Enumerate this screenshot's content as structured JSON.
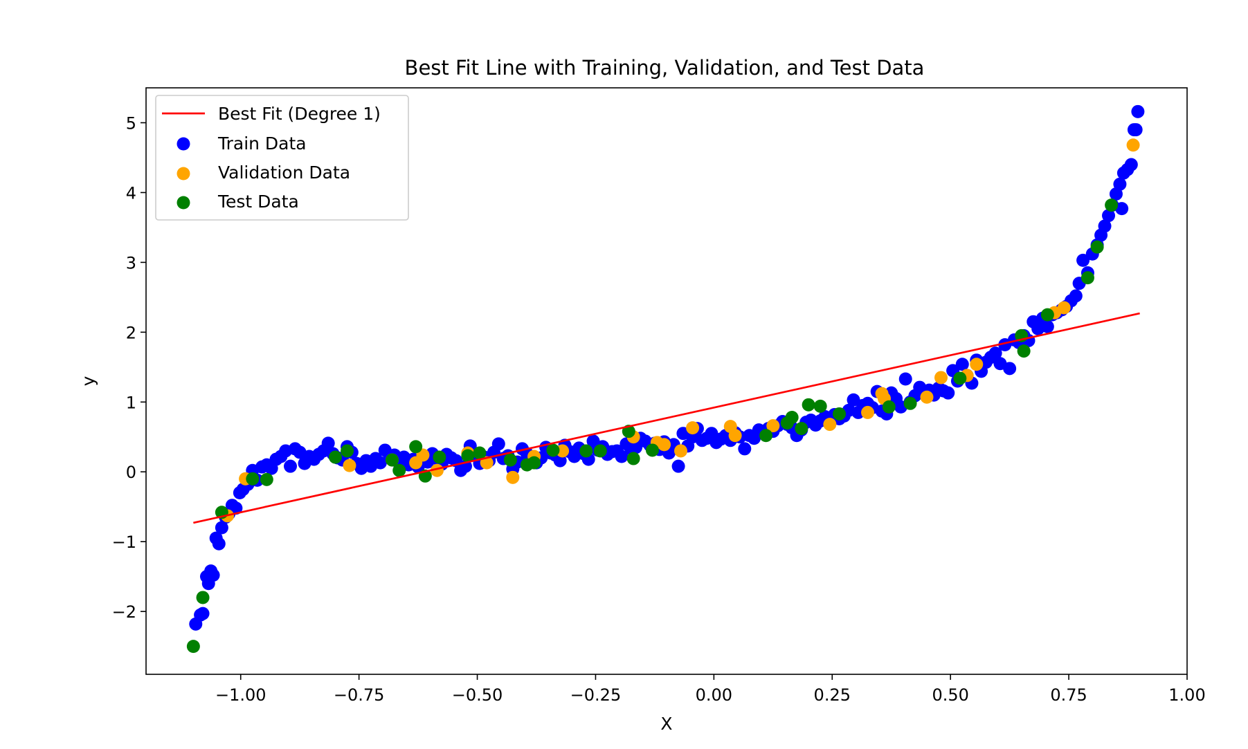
{
  "chart_data": {
    "type": "scatter",
    "title": "Best Fit Line with Training, Validation, and Test Data",
    "xlabel": "X",
    "ylabel": "y",
    "xlim": [
      -1.2,
      1.0
    ],
    "ylim": [
      -2.9,
      5.5
    ],
    "xticks": [
      -1.0,
      -0.75,
      -0.5,
      -0.25,
      0.0,
      0.25,
      0.5,
      0.75,
      1.0
    ],
    "xtick_labels": [
      "−1.00",
      "−0.75",
      "−0.50",
      "−0.25",
      "0.00",
      "0.25",
      "0.50",
      "0.75",
      "1.00"
    ],
    "yticks": [
      -2,
      -1,
      0,
      1,
      2,
      3,
      4,
      5
    ],
    "ytick_labels": [
      "−2",
      "−1",
      "0",
      "1",
      "2",
      "3",
      "4",
      "5"
    ],
    "grid": false,
    "legend_position": "top-left",
    "best_fit": {
      "name": "Best Fit (Degree 1)",
      "color": "#ff0000",
      "x": [
        -1.1,
        0.9
      ],
      "y": [
        -0.73,
        2.27
      ]
    },
    "series": [
      {
        "name": "Train Data",
        "color": "#0000ff",
        "points": [
          [
            -1.095,
            -2.18
          ],
          [
            -1.085,
            -2.05
          ],
          [
            -1.08,
            -2.03
          ],
          [
            -1.072,
            -1.5
          ],
          [
            -1.068,
            -1.6
          ],
          [
            -1.063,
            -1.42
          ],
          [
            -1.058,
            -1.48
          ],
          [
            -1.052,
            -0.95
          ],
          [
            -1.046,
            -1.03
          ],
          [
            -1.04,
            -0.8
          ],
          [
            -1.032,
            -0.65
          ],
          [
            -1.025,
            -0.6
          ],
          [
            -1.018,
            -0.48
          ],
          [
            -1.01,
            -0.52
          ],
          [
            -1.002,
            -0.3
          ],
          [
            -0.995,
            -0.25
          ],
          [
            -0.985,
            -0.18
          ],
          [
            -0.975,
            0.02
          ],
          [
            -0.965,
            -0.12
          ],
          [
            -0.955,
            0.07
          ],
          [
            -0.945,
            0.1
          ],
          [
            -0.935,
            0.05
          ],
          [
            -0.925,
            0.18
          ],
          [
            -0.915,
            0.22
          ],
          [
            -0.905,
            0.3
          ],
          [
            -0.895,
            0.08
          ],
          [
            -0.885,
            0.33
          ],
          [
            -0.875,
            0.28
          ],
          [
            -0.865,
            0.12
          ],
          [
            -0.855,
            0.22
          ],
          [
            -0.845,
            0.18
          ],
          [
            -0.835,
            0.25
          ],
          [
            -0.825,
            0.3
          ],
          [
            -0.815,
            0.41
          ],
          [
            -0.805,
            0.26
          ],
          [
            -0.795,
            0.2
          ],
          [
            -0.785,
            0.17
          ],
          [
            -0.775,
            0.36
          ],
          [
            -0.765,
            0.28
          ],
          [
            -0.755,
            0.12
          ],
          [
            -0.745,
            0.05
          ],
          [
            -0.735,
            0.16
          ],
          [
            -0.725,
            0.08
          ],
          [
            -0.715,
            0.19
          ],
          [
            -0.705,
            0.13
          ],
          [
            -0.695,
            0.31
          ],
          [
            -0.685,
            0.22
          ],
          [
            -0.675,
            0.24
          ],
          [
            -0.665,
            0.12
          ],
          [
            -0.655,
            0.21
          ],
          [
            -0.645,
            0.1
          ],
          [
            -0.635,
            0.18
          ],
          [
            -0.625,
            0.07
          ],
          [
            -0.615,
            0.22
          ],
          [
            -0.605,
            0.14
          ],
          [
            -0.595,
            0.26
          ],
          [
            -0.585,
            0.19
          ],
          [
            -0.575,
            0.11
          ],
          [
            -0.565,
            0.25
          ],
          [
            -0.555,
            0.2
          ],
          [
            -0.545,
            0.16
          ],
          [
            -0.535,
            0.02
          ],
          [
            -0.525,
            0.08
          ],
          [
            -0.515,
            0.37
          ],
          [
            -0.505,
            0.24
          ],
          [
            -0.495,
            0.12
          ],
          [
            -0.485,
            0.21
          ],
          [
            -0.475,
            0.16
          ],
          [
            -0.465,
            0.28
          ],
          [
            -0.455,
            0.4
          ],
          [
            -0.445,
            0.19
          ],
          [
            -0.435,
            0.23
          ],
          [
            -0.425,
            0.04
          ],
          [
            -0.415,
            0.14
          ],
          [
            -0.405,
            0.33
          ],
          [
            -0.395,
            0.26
          ],
          [
            -0.385,
            0.18
          ],
          [
            -0.375,
            0.13
          ],
          [
            -0.365,
            0.2
          ],
          [
            -0.355,
            0.35
          ],
          [
            -0.345,
            0.27
          ],
          [
            -0.335,
            0.24
          ],
          [
            -0.325,
            0.16
          ],
          [
            -0.315,
            0.38
          ],
          [
            -0.305,
            0.29
          ],
          [
            -0.295,
            0.22
          ],
          [
            -0.285,
            0.34
          ],
          [
            -0.275,
            0.26
          ],
          [
            -0.265,
            0.18
          ],
          [
            -0.255,
            0.44
          ],
          [
            -0.245,
            0.31
          ],
          [
            -0.235,
            0.36
          ],
          [
            -0.225,
            0.25
          ],
          [
            -0.215,
            0.29
          ],
          [
            -0.205,
            0.3
          ],
          [
            -0.195,
            0.22
          ],
          [
            -0.185,
            0.4
          ],
          [
            -0.175,
            0.33
          ],
          [
            -0.165,
            0.35
          ],
          [
            -0.155,
            0.48
          ],
          [
            -0.145,
            0.44
          ],
          [
            -0.135,
            0.38
          ],
          [
            -0.125,
            0.41
          ],
          [
            -0.115,
            0.32
          ],
          [
            -0.105,
            0.43
          ],
          [
            -0.095,
            0.27
          ],
          [
            -0.085,
            0.39
          ],
          [
            -0.075,
            0.08
          ],
          [
            -0.065,
            0.55
          ],
          [
            -0.055,
            0.37
          ],
          [
            -0.045,
            0.5
          ],
          [
            -0.035,
            0.62
          ],
          [
            -0.025,
            0.45
          ],
          [
            -0.015,
            0.48
          ],
          [
            -0.005,
            0.55
          ],
          [
            0.005,
            0.42
          ],
          [
            0.015,
            0.47
          ],
          [
            0.025,
            0.52
          ],
          [
            0.035,
            0.45
          ],
          [
            0.045,
            0.56
          ],
          [
            0.055,
            0.5
          ],
          [
            0.065,
            0.33
          ],
          [
            0.075,
            0.52
          ],
          [
            0.085,
            0.48
          ],
          [
            0.095,
            0.6
          ],
          [
            0.105,
            0.55
          ],
          [
            0.115,
            0.62
          ],
          [
            0.125,
            0.58
          ],
          [
            0.135,
            0.66
          ],
          [
            0.145,
            0.72
          ],
          [
            0.155,
            0.68
          ],
          [
            0.165,
            0.63
          ],
          [
            0.175,
            0.52
          ],
          [
            0.185,
            0.6
          ],
          [
            0.195,
            0.71
          ],
          [
            0.205,
            0.74
          ],
          [
            0.215,
            0.67
          ],
          [
            0.225,
            0.73
          ],
          [
            0.235,
            0.79
          ],
          [
            0.245,
            0.7
          ],
          [
            0.255,
            0.82
          ],
          [
            0.265,
            0.76
          ],
          [
            0.275,
            0.8
          ],
          [
            0.285,
            0.88
          ],
          [
            0.295,
            1.03
          ],
          [
            0.305,
            0.85
          ],
          [
            0.315,
            0.95
          ],
          [
            0.325,
            0.98
          ],
          [
            0.335,
            0.92
          ],
          [
            0.345,
            1.15
          ],
          [
            0.355,
            0.87
          ],
          [
            0.365,
            0.83
          ],
          [
            0.375,
            1.13
          ],
          [
            0.385,
            1.05
          ],
          [
            0.395,
            0.93
          ],
          [
            0.405,
            1.33
          ],
          [
            0.415,
            1.0
          ],
          [
            0.425,
            1.09
          ],
          [
            0.435,
            1.21
          ],
          [
            0.445,
            1.12
          ],
          [
            0.455,
            1.17
          ],
          [
            0.465,
            1.1
          ],
          [
            0.475,
            1.2
          ],
          [
            0.485,
            1.16
          ],
          [
            0.495,
            1.13
          ],
          [
            0.505,
            1.45
          ],
          [
            0.515,
            1.3
          ],
          [
            0.525,
            1.54
          ],
          [
            0.535,
            1.38
          ],
          [
            0.545,
            1.27
          ],
          [
            0.555,
            1.6
          ],
          [
            0.565,
            1.44
          ],
          [
            0.575,
            1.57
          ],
          [
            0.585,
            1.64
          ],
          [
            0.595,
            1.7
          ],
          [
            0.605,
            1.55
          ],
          [
            0.615,
            1.82
          ],
          [
            0.625,
            1.48
          ],
          [
            0.635,
            1.89
          ],
          [
            0.645,
            1.85
          ],
          [
            0.655,
            1.95
          ],
          [
            0.665,
            1.88
          ],
          [
            0.675,
            2.15
          ],
          [
            0.685,
            2.05
          ],
          [
            0.695,
            2.2
          ],
          [
            0.705,
            2.08
          ],
          [
            0.715,
            2.25
          ],
          [
            0.725,
            2.28
          ],
          [
            0.735,
            2.32
          ],
          [
            0.745,
            2.37
          ],
          [
            0.755,
            2.45
          ],
          [
            0.765,
            2.52
          ],
          [
            0.772,
            2.7
          ],
          [
            0.78,
            3.03
          ],
          [
            0.79,
            2.85
          ],
          [
            0.8,
            3.12
          ],
          [
            0.81,
            3.25
          ],
          [
            0.818,
            3.39
          ],
          [
            0.826,
            3.52
          ],
          [
            0.834,
            3.67
          ],
          [
            0.842,
            3.82
          ],
          [
            0.85,
            3.98
          ],
          [
            0.858,
            4.12
          ],
          [
            0.866,
            4.28
          ],
          [
            0.874,
            4.33
          ],
          [
            0.882,
            4.4
          ],
          [
            0.888,
            4.9
          ],
          [
            0.896,
            5.16
          ],
          [
            0.892,
            4.9
          ],
          [
            0.862,
            3.77
          ]
        ]
      },
      {
        "name": "Validation Data",
        "color": "#ffa500",
        "points": [
          [
            -0.99,
            -0.1
          ],
          [
            -1.028,
            -0.63
          ],
          [
            -0.77,
            0.09
          ],
          [
            -0.68,
            0.17
          ],
          [
            -0.63,
            0.13
          ],
          [
            -0.615,
            0.24
          ],
          [
            -0.585,
            0.02
          ],
          [
            -0.52,
            0.27
          ],
          [
            -0.48,
            0.13
          ],
          [
            -0.425,
            -0.08
          ],
          [
            -0.38,
            0.22
          ],
          [
            -0.32,
            0.3
          ],
          [
            -0.17,
            0.5
          ],
          [
            -0.12,
            0.42
          ],
          [
            -0.105,
            0.39
          ],
          [
            -0.07,
            0.3
          ],
          [
            -0.045,
            0.63
          ],
          [
            0.035,
            0.65
          ],
          [
            0.045,
            0.52
          ],
          [
            0.125,
            0.66
          ],
          [
            0.245,
            0.68
          ],
          [
            0.325,
            0.85
          ],
          [
            0.355,
            1.12
          ],
          [
            0.36,
            1.05
          ],
          [
            0.45,
            1.07
          ],
          [
            0.48,
            1.35
          ],
          [
            0.535,
            1.38
          ],
          [
            0.555,
            1.54
          ],
          [
            0.72,
            2.28
          ],
          [
            0.74,
            2.35
          ],
          [
            0.886,
            4.68
          ]
        ]
      },
      {
        "name": "Test Data",
        "color": "#008000",
        "points": [
          [
            -1.1,
            -2.5
          ],
          [
            -1.08,
            -1.8
          ],
          [
            -1.04,
            -0.58
          ],
          [
            -0.975,
            -0.1
          ],
          [
            -0.945,
            -0.11
          ],
          [
            -0.8,
            0.21
          ],
          [
            -0.775,
            0.3
          ],
          [
            -0.68,
            0.17
          ],
          [
            -0.665,
            0.02
          ],
          [
            -0.63,
            0.36
          ],
          [
            -0.61,
            -0.06
          ],
          [
            -0.58,
            0.21
          ],
          [
            -0.52,
            0.23
          ],
          [
            -0.495,
            0.27
          ],
          [
            -0.43,
            0.17
          ],
          [
            -0.395,
            0.1
          ],
          [
            -0.38,
            0.13
          ],
          [
            -0.34,
            0.31
          ],
          [
            -0.27,
            0.3
          ],
          [
            -0.24,
            0.3
          ],
          [
            -0.18,
            0.58
          ],
          [
            -0.17,
            0.19
          ],
          [
            -0.13,
            0.31
          ],
          [
            0.11,
            0.52
          ],
          [
            0.155,
            0.7
          ],
          [
            0.165,
            0.78
          ],
          [
            0.185,
            0.62
          ],
          [
            0.2,
            0.96
          ],
          [
            0.225,
            0.94
          ],
          [
            0.265,
            0.83
          ],
          [
            0.37,
            0.93
          ],
          [
            0.415,
            0.98
          ],
          [
            0.52,
            1.34
          ],
          [
            0.65,
            1.95
          ],
          [
            0.655,
            1.73
          ],
          [
            0.705,
            2.25
          ],
          [
            0.81,
            3.22
          ],
          [
            0.79,
            2.78
          ],
          [
            0.84,
            3.82
          ]
        ]
      }
    ]
  }
}
